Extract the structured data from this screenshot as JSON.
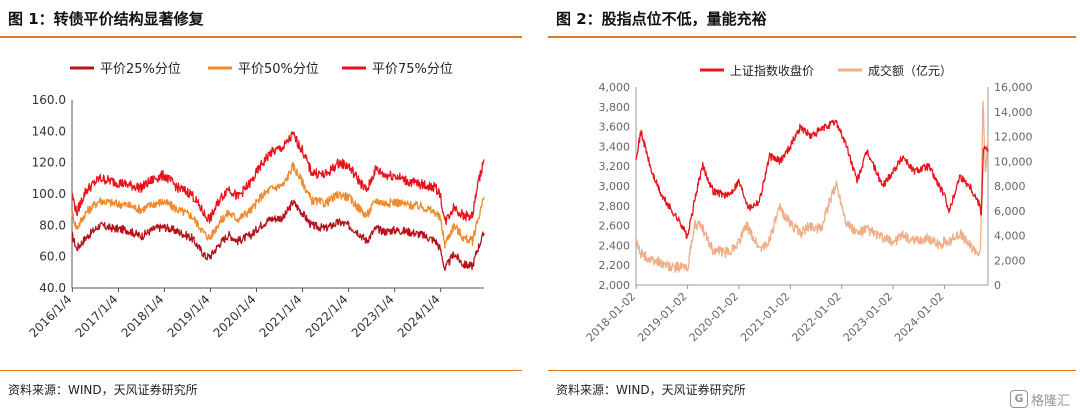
{
  "left": {
    "fig_title": "图 1：转债平价结构显著修复",
    "source": "资料来源：WIND，天风证券研究所",
    "chart_data": {
      "type": "line",
      "title": "图 1：转债平价结构显著修复",
      "xlabel": "",
      "ylabel": "",
      "ylim": [
        40,
        160
      ],
      "yticks": [
        "40.0",
        "60.0",
        "80.0",
        "100.0",
        "120.0",
        "140.0",
        "160.0"
      ],
      "x_ticks": [
        "2016/1/4",
        "2017/1/4",
        "2018/1/4",
        "2019/1/4",
        "2020/1/4",
        "2021/1/4",
        "2022/1/4",
        "2023/1/4",
        "2024/1/4"
      ],
      "xlim": [
        2016.0,
        2024.95
      ],
      "legend": "top",
      "grid": false,
      "series": [
        {
          "name": "平价25%分位",
          "color": "#b5121b",
          "x": [
            2016.0,
            2016.1,
            2016.3,
            2016.6,
            2016.9,
            2017.2,
            2017.5,
            2017.8,
            2018.0,
            2018.3,
            2018.6,
            2018.9,
            2019.0,
            2019.2,
            2019.4,
            2019.6,
            2019.9,
            2020.1,
            2020.3,
            2020.6,
            2020.8,
            2021.0,
            2021.2,
            2021.5,
            2021.8,
            2022.0,
            2022.2,
            2022.4,
            2022.6,
            2022.8,
            2023.0,
            2023.3,
            2023.6,
            2023.9,
            2024.0,
            2024.1,
            2024.3,
            2024.5,
            2024.7,
            2024.8,
            2024.95
          ],
          "y": [
            74,
            65,
            72,
            80,
            78,
            77,
            73,
            78,
            79,
            76,
            72,
            60,
            60,
            68,
            74,
            70,
            74,
            80,
            84,
            85,
            95,
            88,
            80,
            78,
            82,
            80,
            76,
            70,
            78,
            76,
            77,
            76,
            74,
            70,
            65,
            52,
            62,
            55,
            54,
            64,
            75
          ]
        },
        {
          "name": "平价50%分位",
          "color": "#ef8a2e",
          "x": [
            2016.0,
            2016.1,
            2016.3,
            2016.6,
            2016.9,
            2017.2,
            2017.5,
            2017.8,
            2018.0,
            2018.3,
            2018.6,
            2018.9,
            2019.0,
            2019.2,
            2019.4,
            2019.6,
            2019.9,
            2020.1,
            2020.3,
            2020.6,
            2020.8,
            2021.0,
            2021.2,
            2021.5,
            2021.8,
            2022.0,
            2022.2,
            2022.4,
            2022.6,
            2022.8,
            2023.0,
            2023.3,
            2023.6,
            2023.9,
            2024.0,
            2024.1,
            2024.3,
            2024.5,
            2024.7,
            2024.8,
            2024.95
          ],
          "y": [
            88,
            78,
            88,
            96,
            94,
            93,
            90,
            94,
            95,
            90,
            86,
            74,
            72,
            82,
            88,
            84,
            90,
            98,
            103,
            106,
            118,
            108,
            96,
            94,
            100,
            98,
            92,
            86,
            96,
            94,
            95,
            93,
            92,
            88,
            84,
            68,
            80,
            72,
            70,
            82,
            98
          ]
        },
        {
          "name": "平价75%分位",
          "color": "#e8141c",
          "x": [
            2016.0,
            2016.1,
            2016.3,
            2016.6,
            2016.9,
            2017.2,
            2017.5,
            2017.8,
            2018.0,
            2018.3,
            2018.6,
            2018.9,
            2019.0,
            2019.2,
            2019.4,
            2019.6,
            2019.9,
            2020.1,
            2020.3,
            2020.6,
            2020.8,
            2021.0,
            2021.2,
            2021.5,
            2021.8,
            2022.0,
            2022.2,
            2022.4,
            2022.6,
            2022.8,
            2023.0,
            2023.3,
            2023.6,
            2023.9,
            2024.0,
            2024.1,
            2024.3,
            2024.5,
            2024.7,
            2024.8,
            2024.95
          ],
          "y": [
            100,
            88,
            102,
            110,
            108,
            106,
            104,
            110,
            112,
            104,
            100,
            86,
            84,
            96,
            104,
            98,
            108,
            118,
            126,
            130,
            138,
            128,
            114,
            112,
            120,
            118,
            110,
            102,
            116,
            112,
            112,
            108,
            106,
            104,
            100,
            82,
            92,
            86,
            86,
            104,
            122
          ]
        }
      ]
    }
  },
  "right": {
    "fig_title": "图 2：股指点位不低，量能充裕",
    "source": "资料来源：WIND，天风证券研究所",
    "chart_data": {
      "type": "line",
      "title": "图 2：股指点位不低，量能充裕",
      "xlabel": "",
      "ylabel": "",
      "ylim": [
        2000,
        4000
      ],
      "y2lim": [
        0,
        16000
      ],
      "yticks": [
        "2,000",
        "2,200",
        "2,400",
        "2,600",
        "2,800",
        "3,000",
        "3,200",
        "3,400",
        "3,600",
        "3,800",
        "4,000"
      ],
      "y2ticks": [
        "0",
        "2,000",
        "4,000",
        "6,000",
        "8,000",
        "10,000",
        "12,000",
        "14,000",
        "16,000"
      ],
      "x_ticks": [
        "2018-01-02",
        "2019-01-02",
        "2020-01-02",
        "2021-01-02",
        "2022-01-02",
        "2023-01-02",
        "2024-01-02"
      ],
      "xlim": [
        2018.0,
        2024.85
      ],
      "legend": "top",
      "grid": false,
      "series": [
        {
          "name": "上证指数收盘价",
          "axis": "left",
          "color": "#e8141c",
          "x": [
            2018.0,
            2018.1,
            2018.3,
            2018.5,
            2018.7,
            2018.9,
            2019.0,
            2019.2,
            2019.3,
            2019.5,
            2019.8,
            2020.0,
            2020.2,
            2020.4,
            2020.6,
            2020.8,
            2021.0,
            2021.2,
            2021.4,
            2021.7,
            2021.9,
            2022.1,
            2022.3,
            2022.5,
            2022.8,
            2023.0,
            2023.2,
            2023.4,
            2023.7,
            2023.9,
            2024.0,
            2024.1,
            2024.3,
            2024.5,
            2024.7,
            2024.72,
            2024.76,
            2024.85
          ],
          "y": [
            3300,
            3550,
            3150,
            2900,
            2750,
            2600,
            2480,
            3000,
            3200,
            2950,
            2900,
            3050,
            2780,
            2850,
            3300,
            3250,
            3400,
            3600,
            3500,
            3600,
            3650,
            3400,
            3050,
            3350,
            3000,
            3150,
            3300,
            3150,
            3200,
            3000,
            2900,
            2750,
            3100,
            3000,
            2800,
            2700,
            3400,
            3350
          ]
        },
        {
          "name": "成交额（亿元）",
          "axis": "right",
          "color": "#f0ad86",
          "x": [
            2018.0,
            2018.1,
            2018.3,
            2018.5,
            2018.7,
            2018.9,
            2019.0,
            2019.15,
            2019.3,
            2019.5,
            2019.8,
            2020.0,
            2020.15,
            2020.4,
            2020.55,
            2020.8,
            2021.0,
            2021.2,
            2021.4,
            2021.6,
            2021.75,
            2021.9,
            2022.1,
            2022.3,
            2022.5,
            2022.8,
            2023.0,
            2023.2,
            2023.4,
            2023.7,
            2023.9,
            2024.0,
            2024.1,
            2024.3,
            2024.5,
            2024.7,
            2024.72,
            2024.75,
            2024.8,
            2024.85
          ],
          "y": [
            3500,
            2500,
            2000,
            1800,
            1400,
            1500,
            1300,
            5000,
            4500,
            2800,
            2600,
            3500,
            4800,
            3000,
            3200,
            6200,
            5000,
            4200,
            4800,
            4500,
            6500,
            8200,
            5000,
            4200,
            4500,
            3800,
            3500,
            4000,
            3500,
            3800,
            3200,
            3500,
            3500,
            4200,
            3200,
            2500,
            6000,
            15000,
            9000,
            12000
          ]
        }
      ]
    }
  },
  "watermark": {
    "logo": "G",
    "text": "格隆汇"
  }
}
